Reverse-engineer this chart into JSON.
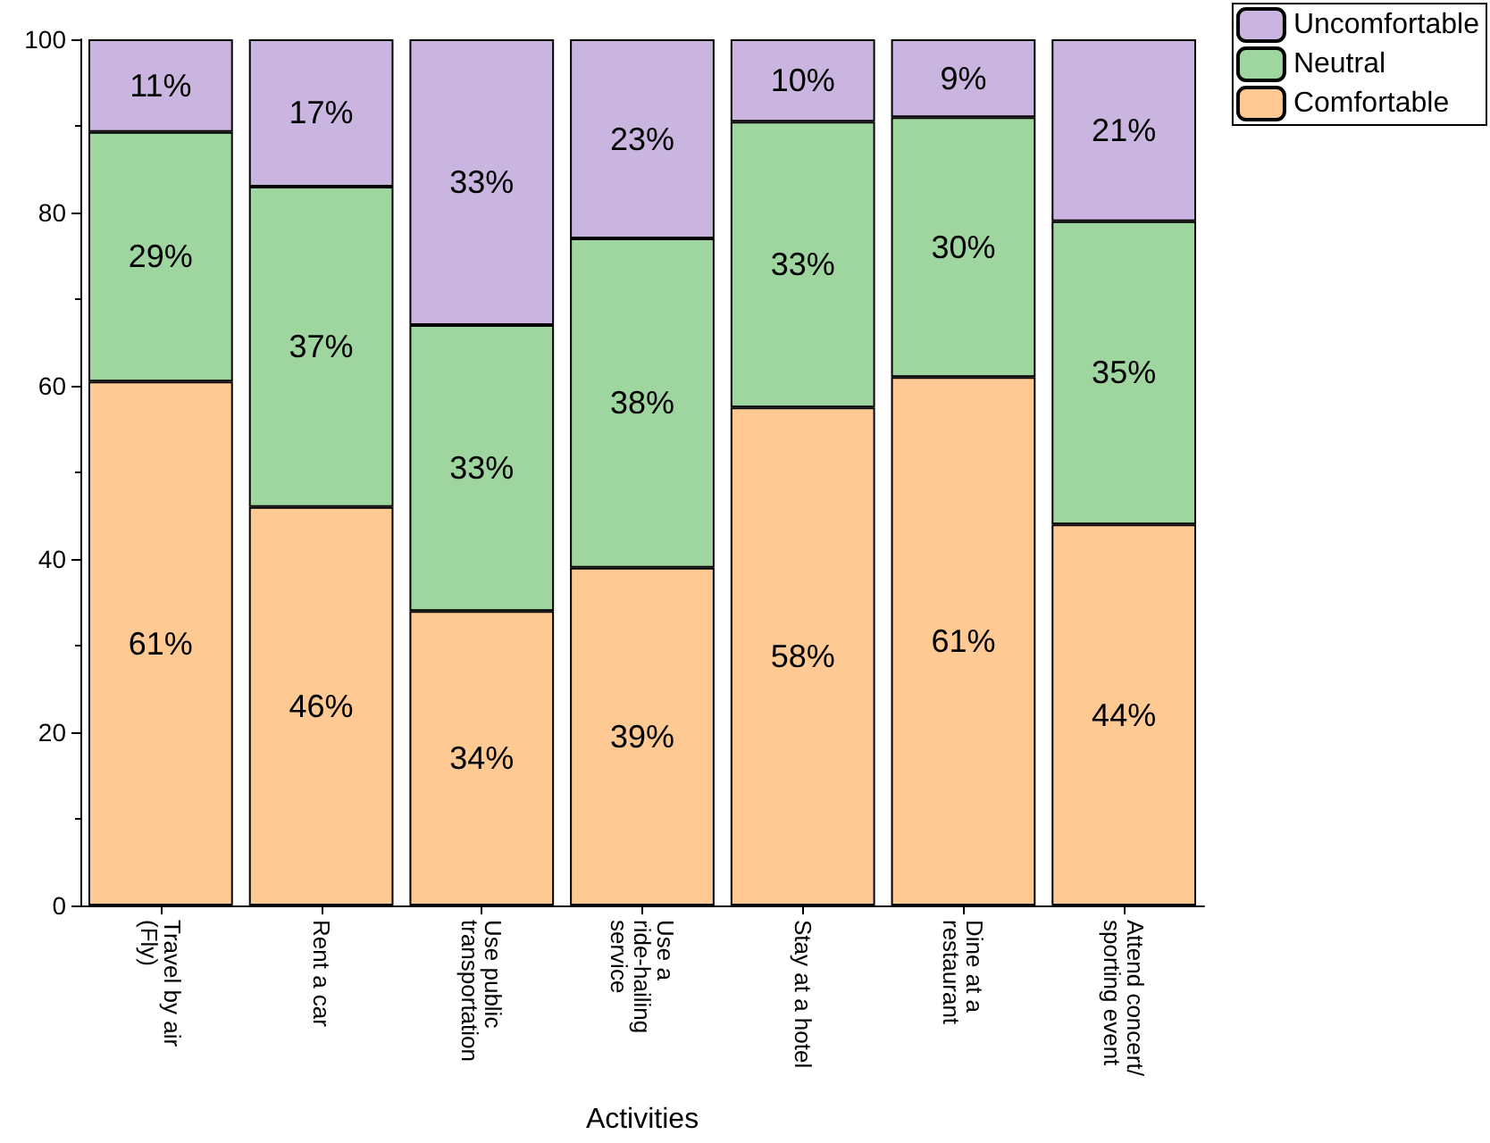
{
  "chart_data": {
    "type": "bar",
    "stacked": true,
    "xlabel": "Activities",
    "categories": [
      "Travel by air (Fly)",
      "Rent a car",
      "Use public transportation",
      "Use a ride-hailing service",
      "Stay at a hotel",
      "Dine at a restaurant",
      "Attend concert/sporting event"
    ],
    "series": [
      {
        "name": "Comfortable",
        "color": "#ffc993",
        "values": [
          60.5,
          46,
          34,
          39,
          57.5,
          61,
          44
        ],
        "value_labels": [
          "61%",
          "46%",
          "34%",
          "39%",
          "58%",
          "61%",
          "44%"
        ]
      },
      {
        "name": "Neutral",
        "color": "#9fd59f",
        "values": [
          28.8,
          37,
          33,
          38,
          33,
          30,
          35
        ],
        "value_labels": [
          "29%",
          "37%",
          "33%",
          "38%",
          "33%",
          "30%",
          "35%"
        ]
      },
      {
        "name": "Uncomfortable",
        "color": "#c9b5e0",
        "values": [
          10.7,
          17,
          33,
          23,
          9.5,
          9,
          21
        ],
        "value_labels": [
          "11%",
          "17%",
          "33%",
          "23%",
          "10%",
          "9%",
          "21%"
        ]
      }
    ],
    "ylim": [
      0,
      100
    ],
    "yticks": [
      0,
      20,
      40,
      60,
      80,
      100
    ],
    "grid": false,
    "legend": "top right"
  }
}
